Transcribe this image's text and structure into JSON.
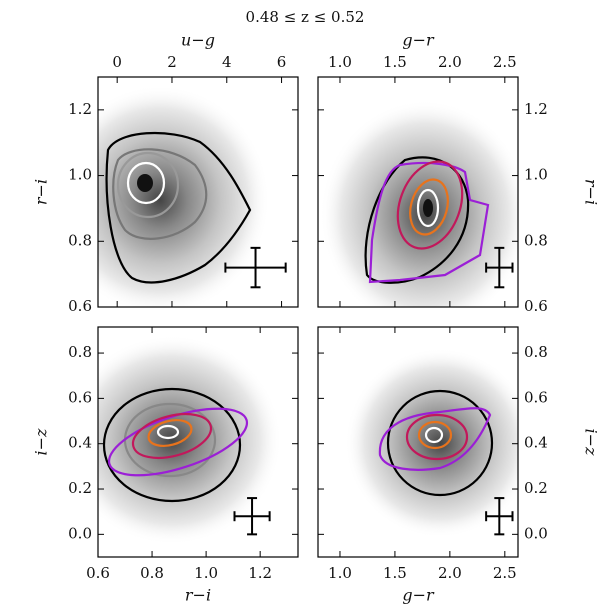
{
  "title": "0.48 ≤ z ≤ 0.52",
  "chart_data": [
    {
      "type": "density",
      "xlabel": "u−g",
      "ylabel": "r−i",
      "xaxis": "top",
      "yaxis": "left",
      "xlim": [
        -0.7,
        6.6
      ],
      "xticks": [
        0,
        2,
        4,
        6
      ],
      "ylim": [
        0.6,
        1.3
      ],
      "yticks": [
        {
          "value": 0.6,
          "label": "0.6"
        },
        0.8,
        {
          "value": 1.0,
          "label": "1.0"
        },
        1.2
      ],
      "error_bar": {
        "x": 5.05,
        "y": 0.72,
        "xerr": 1.1,
        "yerr": 0.06
      }
    },
    {
      "type": "density",
      "xlabel": "g−r",
      "ylabel": "r−i",
      "xaxis": "top",
      "yaxis": "right",
      "xlim": [
        0.8,
        2.62
      ],
      "xticks": [
        {
          "value": 1.0,
          "label": "1.0"
        },
        1.5,
        {
          "value": 2.0,
          "label": "2.0"
        },
        2.5
      ],
      "ylim": [
        0.6,
        1.3
      ],
      "yticks": [
        {
          "value": 0.6,
          "label": "0.6"
        },
        0.8,
        {
          "value": 1.0,
          "label": "1.0"
        },
        1.2
      ],
      "error_bar": {
        "x": 2.45,
        "y": 0.72,
        "xerr": 0.12,
        "yerr": 0.06
      }
    },
    {
      "type": "density",
      "xlabel": "r−i",
      "ylabel": "i−z",
      "xaxis": "bottom",
      "yaxis": "left",
      "xlim": [
        0.6,
        1.34
      ],
      "xticks": [
        0.6,
        0.8,
        {
          "value": 1.0,
          "label": "1.0"
        },
        1.2
      ],
      "ylim": [
        -0.1,
        0.915
      ],
      "yticks": [
        {
          "value": 0,
          "label": "0.0"
        },
        0.2,
        0.4,
        0.6,
        0.8
      ],
      "error_bar": {
        "x": 1.17,
        "y": 0.08,
        "xerr": 0.065,
        "yerr": 0.08
      }
    },
    {
      "type": "density",
      "xlabel": "g−r",
      "ylabel": "i−z",
      "xaxis": "bottom",
      "yaxis": "right",
      "xlim": [
        0.8,
        2.62
      ],
      "xticks": [
        {
          "value": 1.0,
          "label": "1.0"
        },
        1.5,
        {
          "value": 2.0,
          "label": "2.0"
        },
        2.5
      ],
      "ylim": [
        -0.1,
        0.915
      ],
      "yticks": [
        {
          "value": 0,
          "label": "0.0"
        },
        0.2,
        0.4,
        0.6,
        0.8
      ],
      "error_bar": {
        "x": 2.45,
        "y": 0.08,
        "xerr": 0.12,
        "yerr": 0.08
      }
    }
  ]
}
